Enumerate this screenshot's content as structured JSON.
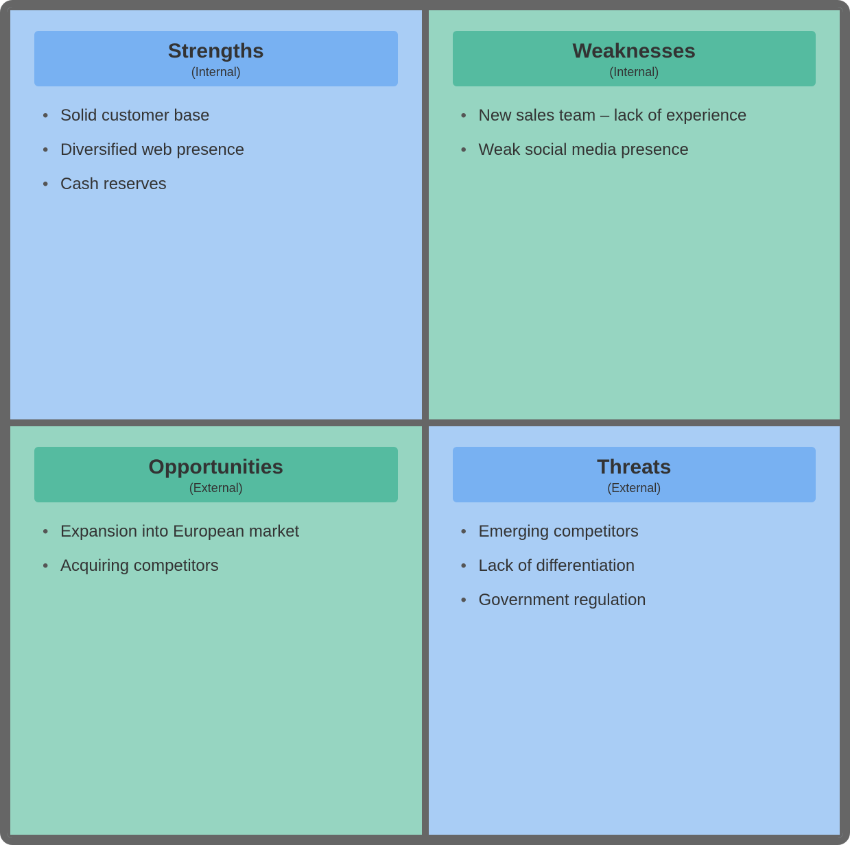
{
  "diagram": {
    "type": "swot-quadrant",
    "border_color": "#666666",
    "border_width_outer": 10,
    "border_width_inner": 5,
    "border_radius": 18,
    "text_color": "#333333",
    "bullet_color": "#555555",
    "title_fontsize": 30,
    "subtitle_fontsize": 18,
    "item_fontsize": 24,
    "quadrants": {
      "strengths": {
        "title": "Strengths",
        "subtitle": "(Internal)",
        "panel_bg": "#a9cdf5",
        "header_bg": "#78b1f2",
        "items": [
          "Solid customer base",
          "Diversified web presence",
          "Cash reserves"
        ]
      },
      "weaknesses": {
        "title": "Weaknesses",
        "subtitle": "(Internal)",
        "panel_bg": "#96d5c1",
        "header_bg": "#55bba0",
        "items": [
          "New sales team – lack of experience",
          "Weak social media presence"
        ]
      },
      "opportunities": {
        "title": "Opportunities",
        "subtitle": "(External)",
        "panel_bg": "#96d5c1",
        "header_bg": "#55bba0",
        "items": [
          "Expansion into European market",
          "Acquiring competitors"
        ]
      },
      "threats": {
        "title": "Threats",
        "subtitle": "(External)",
        "panel_bg": "#a9cdf5",
        "header_bg": "#78b1f2",
        "items": [
          "Emerging competitors",
          "Lack of differentiation",
          "Government regulation"
        ]
      }
    }
  }
}
